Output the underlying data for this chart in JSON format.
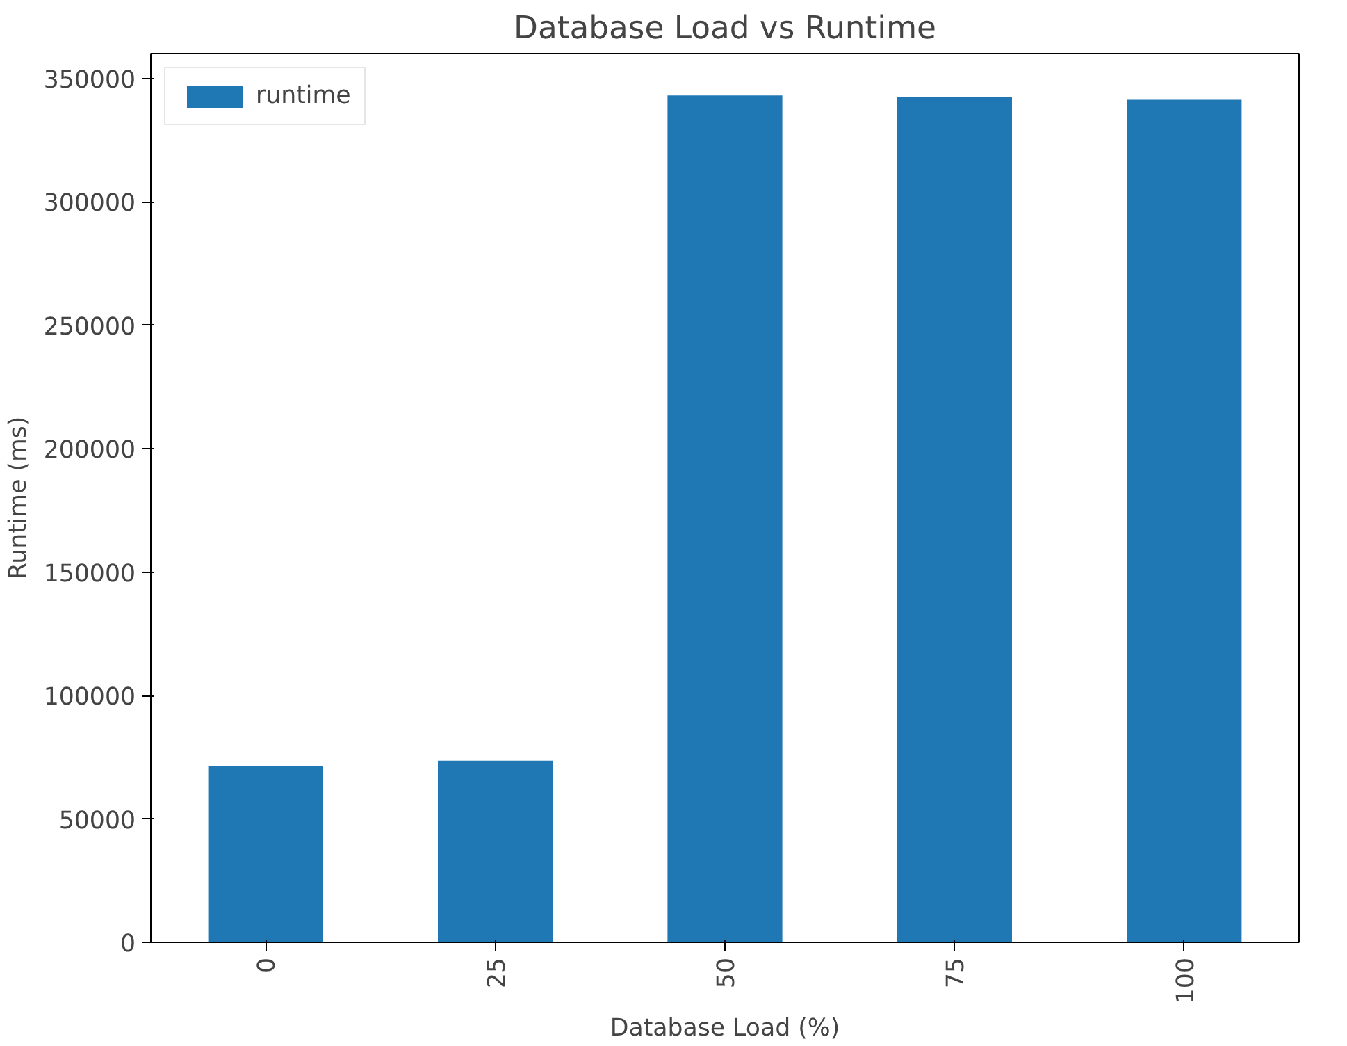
{
  "chart_data": {
    "type": "bar",
    "title": "Database Load vs Runtime",
    "xlabel": "Database Load (%)",
    "ylabel": "Runtime (ms)",
    "categories": [
      "0",
      "25",
      "50",
      "75",
      "100"
    ],
    "series": [
      {
        "name": "runtime",
        "color": "#1f77b4",
        "values": [
          71300,
          73600,
          343000,
          342400,
          341300
        ]
      }
    ],
    "ylim": [
      0,
      360000
    ],
    "yticks": [
      0,
      50000,
      100000,
      150000,
      200000,
      250000,
      300000,
      350000
    ],
    "legend": "top left",
    "grid": false
  }
}
